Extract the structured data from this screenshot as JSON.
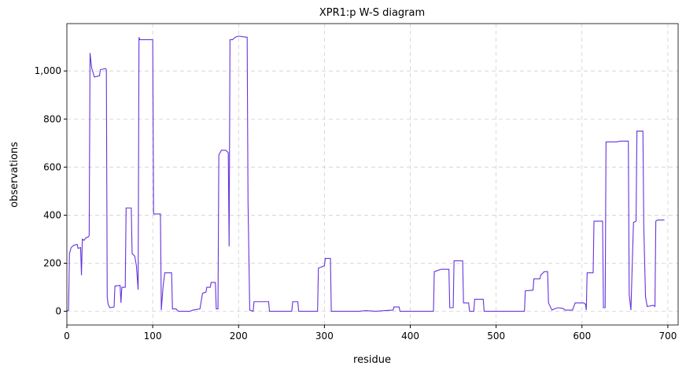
{
  "chart_data": {
    "type": "line",
    "title": "XPR1:p W-S diagram",
    "x_label": "residue",
    "y_label": "observations",
    "xlim": [
      0,
      712
    ],
    "ylim": [
      -57,
      1197
    ],
    "xticks": [
      0,
      100,
      200,
      300,
      400,
      500,
      600,
      700
    ],
    "yticks": [
      0,
      200,
      400,
      600,
      800,
      {
        "value": 1000,
        "label": "1,000"
      }
    ],
    "grid": true,
    "series": [
      {
        "color": "#6633dd",
        "x": [
          0,
          2,
          3,
          5,
          8,
          12,
          13,
          16,
          17,
          18,
          20,
          22,
          25,
          26,
          27,
          28,
          29,
          30,
          32,
          38,
          39,
          45,
          46,
          47,
          48,
          50,
          55,
          56,
          62,
          63,
          64,
          68,
          69,
          75,
          76,
          79,
          81,
          83,
          84,
          85,
          100,
          101,
          109,
          110,
          112,
          114,
          122,
          123,
          127,
          130,
          143,
          147,
          155,
          158,
          162,
          163,
          167,
          168,
          173,
          174,
          176,
          177,
          180,
          185,
          188,
          189,
          190,
          193,
          196,
          200,
          210,
          211,
          213,
          217,
          218,
          235,
          236,
          262,
          263,
          269,
          270,
          292,
          293,
          297,
          300,
          301,
          307,
          308,
          340,
          348,
          360,
          370,
          380,
          381,
          387,
          388,
          427,
          428,
          432,
          436,
          445,
          446,
          450,
          451,
          461,
          462,
          468,
          469,
          474,
          475,
          485,
          486,
          533,
          534,
          543,
          544,
          551,
          552,
          556,
          560,
          561,
          565,
          568,
          572,
          578,
          580,
          589,
          592,
          602,
          604,
          605,
          606,
          613,
          614,
          624,
          625,
          627,
          628,
          640,
          645,
          654,
          655,
          657,
          660,
          663,
          664,
          671,
          672,
          674,
          676,
          683,
          685,
          686,
          688,
          696
        ],
        "values": [
          0,
          5,
          240,
          265,
          275,
          278,
          262,
          265,
          150,
          300,
          295,
          305,
          310,
          315,
          1075,
          1040,
          1010,
          1000,
          975,
          980,
          1005,
          1010,
          1005,
          60,
          30,
          15,
          18,
          105,
          108,
          35,
          100,
          100,
          430,
          430,
          240,
          230,
          190,
          90,
          1140,
          1130,
          1130,
          405,
          405,
          5,
          100,
          160,
          160,
          10,
          10,
          0,
          0,
          5,
          10,
          75,
          80,
          100,
          100,
          120,
          120,
          10,
          10,
          650,
          670,
          670,
          660,
          270,
          1130,
          1130,
          1140,
          1145,
          1140,
          460,
          5,
          0,
          40,
          40,
          0,
          0,
          40,
          40,
          0,
          0,
          180,
          185,
          190,
          220,
          220,
          0,
          0,
          3,
          0,
          3,
          5,
          18,
          18,
          0,
          0,
          165,
          170,
          175,
          175,
          15,
          15,
          210,
          210,
          35,
          35,
          0,
          0,
          50,
          50,
          0,
          0,
          85,
          88,
          135,
          135,
          150,
          165,
          165,
          35,
          5,
          10,
          15,
          12,
          5,
          5,
          35,
          35,
          30,
          5,
          160,
          160,
          375,
          375,
          15,
          15,
          705,
          705,
          708,
          708,
          70,
          5,
          370,
          375,
          750,
          750,
          350,
          60,
          20,
          25,
          20,
          375,
          380,
          380
        ]
      }
    ]
  }
}
